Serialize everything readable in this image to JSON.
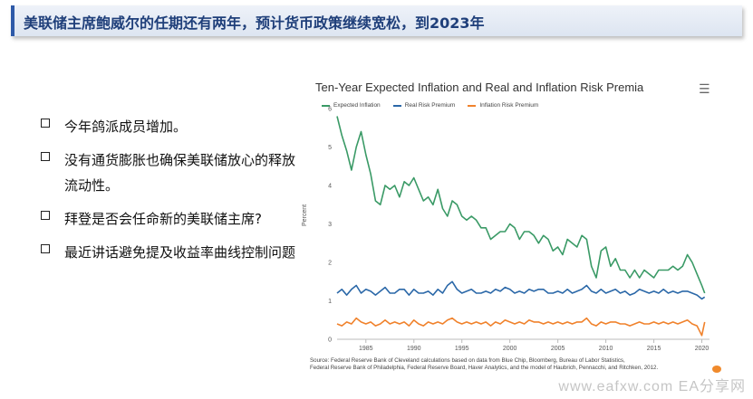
{
  "header": {
    "title": "美联储主席鲍威尔的任期还有两年，预计货币政策继续宽松，到2023年"
  },
  "bullets": [
    {
      "text": "今年鸽派成员增加。"
    },
    {
      "text": "没有通货膨胀也确保美联储放心的释放流动性。"
    },
    {
      "text": "拜登是否会任命新的美联储主席?"
    },
    {
      "text": "最近讲话避免提及收益率曲线控制问题"
    }
  ],
  "chart_menu_icon": "hamburger-menu-icon",
  "source_lines": [
    "Source: Federal Reserve Bank of Cleveland calculations based on data from Blue Chip, Bloomberg, Bureau of Labor Statistics,",
    "Federal Reserve Bank of Philadelphia, Federal Reserve Board, Haver Analytics, and the model of Haubrich, Pennacchi, and Ritchken, 2012."
  ],
  "watermark": "www.eafxw.com  EA分享网",
  "chart_data": {
    "type": "line",
    "title": "Ten-Year Expected Inflation and Real and Inflation Risk Premia",
    "ylabel": "Percent",
    "xlabel": "",
    "xlim": [
      1982,
      2020.8
    ],
    "ylim": [
      0,
      6
    ],
    "x_ticks": [
      1985,
      1990,
      1995,
      2000,
      2005,
      2010,
      2015,
      2020
    ],
    "y_ticks": [
      0,
      1,
      2,
      3,
      4,
      5,
      6
    ],
    "grid": false,
    "legend_position": "top-left",
    "series": [
      {
        "name": "Expected Inflation",
        "color": "#3a9a66",
        "x": [
          1982,
          1982.5,
          1983,
          1983.5,
          1984,
          1984.5,
          1985,
          1985.5,
          1986,
          1986.5,
          1987,
          1987.5,
          1988,
          1988.5,
          1989,
          1989.5,
          1990,
          1990.5,
          1991,
          1991.5,
          1992,
          1992.5,
          1993,
          1993.5,
          1994,
          1994.5,
          1995,
          1995.5,
          1996,
          1996.5,
          1997,
          1997.5,
          1998,
          1998.5,
          1999,
          1999.5,
          2000,
          2000.5,
          2001,
          2001.5,
          2002,
          2002.5,
          2003,
          2003.5,
          2004,
          2004.5,
          2005,
          2005.5,
          2006,
          2006.5,
          2007,
          2007.5,
          2008,
          2008.5,
          2009,
          2009.5,
          2010,
          2010.5,
          2011,
          2011.5,
          2012,
          2012.5,
          2013,
          2013.5,
          2014,
          2014.5,
          2015,
          2015.5,
          2016,
          2016.5,
          2017,
          2017.5,
          2018,
          2018.5,
          2019,
          2019.5,
          2020,
          2020.3
        ],
        "y": [
          5.8,
          5.3,
          4.9,
          4.4,
          5.0,
          5.4,
          4.8,
          4.3,
          3.6,
          3.5,
          4.0,
          3.9,
          4.0,
          3.7,
          4.1,
          4.0,
          4.2,
          3.9,
          3.6,
          3.7,
          3.5,
          3.9,
          3.4,
          3.2,
          3.6,
          3.5,
          3.2,
          3.1,
          3.2,
          3.1,
          2.9,
          2.9,
          2.6,
          2.7,
          2.8,
          2.8,
          3.0,
          2.9,
          2.6,
          2.8,
          2.8,
          2.7,
          2.5,
          2.7,
          2.6,
          2.3,
          2.4,
          2.2,
          2.6,
          2.5,
          2.4,
          2.7,
          2.6,
          1.9,
          1.6,
          2.3,
          2.4,
          1.9,
          2.1,
          1.8,
          1.8,
          1.6,
          1.8,
          1.6,
          1.8,
          1.7,
          1.6,
          1.8,
          1.8,
          1.8,
          1.9,
          1.8,
          1.9,
          2.2,
          2.0,
          1.7,
          1.4,
          1.2
        ]
      },
      {
        "name": "Real Risk Premium",
        "color": "#2b68a8",
        "x": [
          1982,
          1982.5,
          1983,
          1983.5,
          1984,
          1984.5,
          1985,
          1985.5,
          1986,
          1986.5,
          1987,
          1987.5,
          1988,
          1988.5,
          1989,
          1989.5,
          1990,
          1990.5,
          1991,
          1991.5,
          1992,
          1992.5,
          1993,
          1993.5,
          1994,
          1994.5,
          1995,
          1995.5,
          1996,
          1996.5,
          1997,
          1997.5,
          1998,
          1998.5,
          1999,
          1999.5,
          2000,
          2000.5,
          2001,
          2001.5,
          2002,
          2002.5,
          2003,
          2003.5,
          2004,
          2004.5,
          2005,
          2005.5,
          2006,
          2006.5,
          2007,
          2007.5,
          2008,
          2008.5,
          2009,
          2009.5,
          2010,
          2010.5,
          2011,
          2011.5,
          2012,
          2012.5,
          2013,
          2013.5,
          2014,
          2014.5,
          2015,
          2015.5,
          2016,
          2016.5,
          2017,
          2017.5,
          2018,
          2018.5,
          2019,
          2019.5,
          2020,
          2020.3
        ],
        "y": [
          1.2,
          1.3,
          1.15,
          1.3,
          1.4,
          1.2,
          1.3,
          1.25,
          1.15,
          1.25,
          1.35,
          1.2,
          1.2,
          1.3,
          1.3,
          1.15,
          1.3,
          1.2,
          1.2,
          1.25,
          1.15,
          1.3,
          1.2,
          1.4,
          1.5,
          1.3,
          1.2,
          1.25,
          1.3,
          1.2,
          1.2,
          1.25,
          1.2,
          1.3,
          1.25,
          1.35,
          1.3,
          1.2,
          1.25,
          1.2,
          1.3,
          1.25,
          1.3,
          1.3,
          1.2,
          1.2,
          1.25,
          1.2,
          1.3,
          1.2,
          1.25,
          1.3,
          1.4,
          1.25,
          1.2,
          1.3,
          1.2,
          1.25,
          1.3,
          1.2,
          1.25,
          1.15,
          1.2,
          1.3,
          1.25,
          1.2,
          1.25,
          1.2,
          1.3,
          1.2,
          1.25,
          1.2,
          1.25,
          1.25,
          1.2,
          1.15,
          1.05,
          1.1
        ]
      },
      {
        "name": "Inflation Risk Premium",
        "color": "#f0822c",
        "x": [
          1982,
          1982.5,
          1983,
          1983.5,
          1984,
          1984.5,
          1985,
          1985.5,
          1986,
          1986.5,
          1987,
          1987.5,
          1988,
          1988.5,
          1989,
          1989.5,
          1990,
          1990.5,
          1991,
          1991.5,
          1992,
          1992.5,
          1993,
          1993.5,
          1994,
          1994.5,
          1995,
          1995.5,
          1996,
          1996.5,
          1997,
          1997.5,
          1998,
          1998.5,
          1999,
          1999.5,
          2000,
          2000.5,
          2001,
          2001.5,
          2002,
          2002.5,
          2003,
          2003.5,
          2004,
          2004.5,
          2005,
          2005.5,
          2006,
          2006.5,
          2007,
          2007.5,
          2008,
          2008.5,
          2009,
          2009.5,
          2010,
          2010.5,
          2011,
          2011.5,
          2012,
          2012.5,
          2013,
          2013.5,
          2014,
          2014.5,
          2015,
          2015.5,
          2016,
          2016.5,
          2017,
          2017.5,
          2018,
          2018.5,
          2019,
          2019.5,
          2020,
          2020.3
        ],
        "y": [
          0.4,
          0.35,
          0.45,
          0.4,
          0.55,
          0.45,
          0.4,
          0.45,
          0.35,
          0.4,
          0.5,
          0.4,
          0.45,
          0.4,
          0.45,
          0.35,
          0.5,
          0.4,
          0.35,
          0.45,
          0.4,
          0.45,
          0.4,
          0.5,
          0.55,
          0.45,
          0.4,
          0.45,
          0.4,
          0.45,
          0.4,
          0.45,
          0.35,
          0.45,
          0.4,
          0.5,
          0.45,
          0.4,
          0.45,
          0.4,
          0.5,
          0.45,
          0.45,
          0.4,
          0.45,
          0.4,
          0.45,
          0.4,
          0.45,
          0.4,
          0.45,
          0.45,
          0.55,
          0.4,
          0.35,
          0.45,
          0.4,
          0.45,
          0.45,
          0.4,
          0.4,
          0.35,
          0.4,
          0.45,
          0.4,
          0.4,
          0.45,
          0.4,
          0.45,
          0.4,
          0.45,
          0.4,
          0.45,
          0.5,
          0.4,
          0.35,
          0.1,
          0.45
        ]
      }
    ]
  }
}
